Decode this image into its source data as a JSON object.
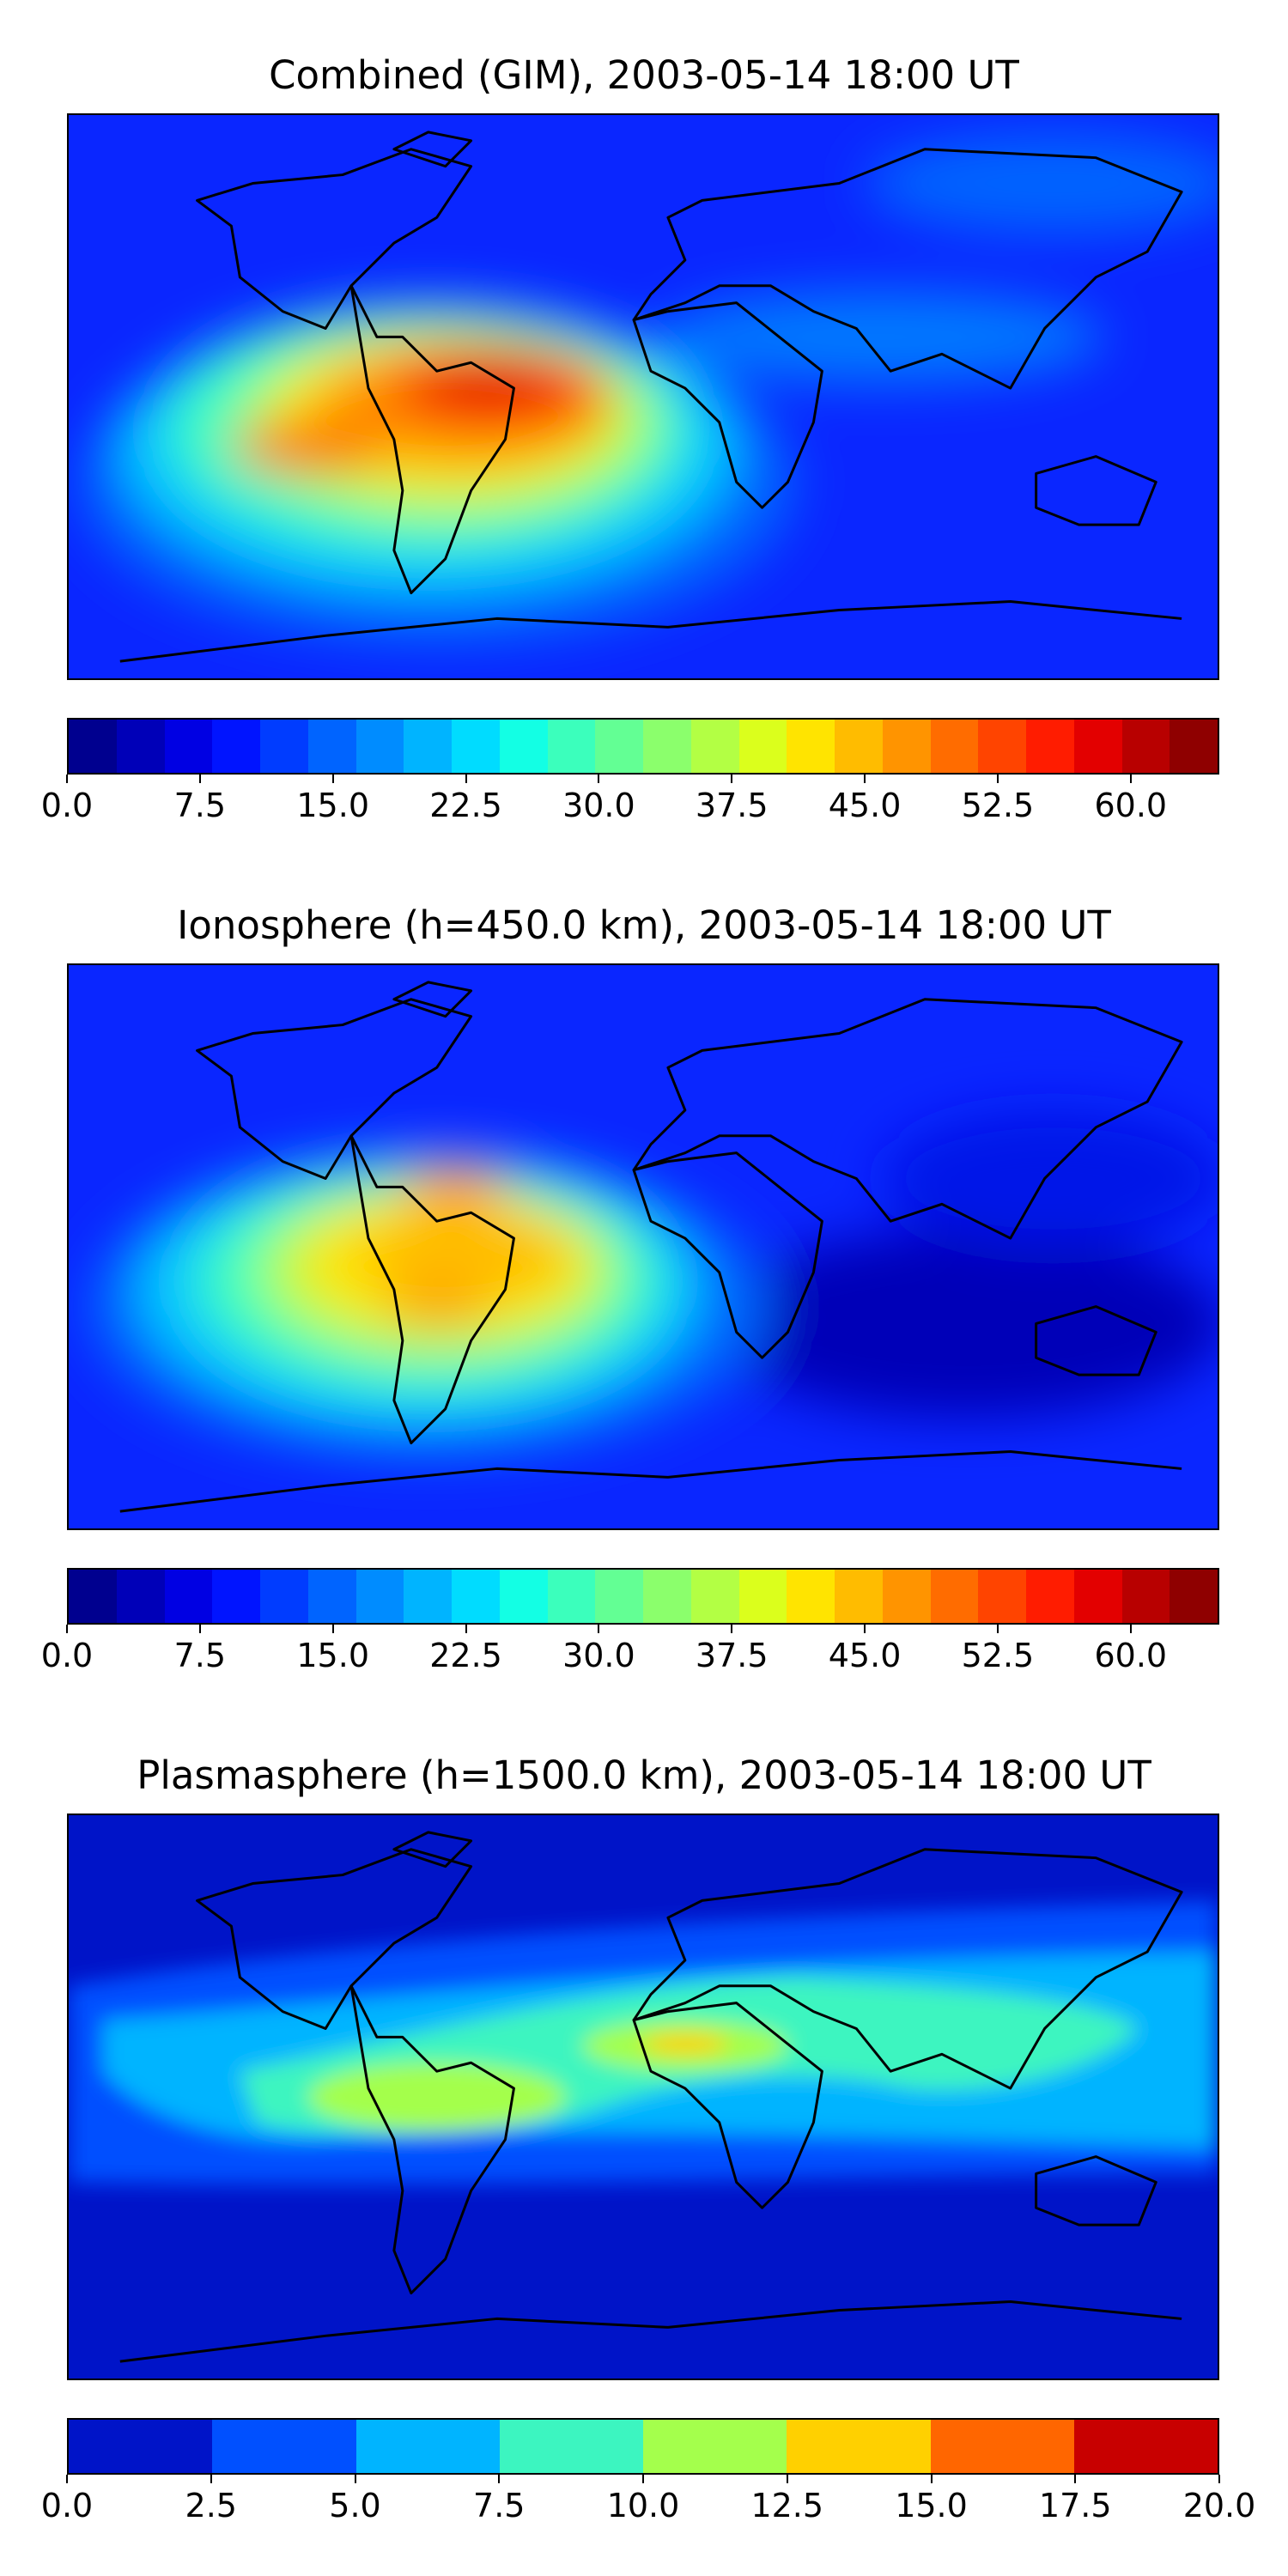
{
  "panels": [
    {
      "title": "Combined (GIM), 2003-05-14 18:00 UT",
      "colorbar": {
        "ticks": [
          "0.0",
          "7.5",
          "15.0",
          "22.5",
          "30.0",
          "37.5",
          "45.0",
          "52.5",
          "60.0"
        ],
        "tick_values": [
          0,
          7.5,
          15,
          22.5,
          30,
          37.5,
          45,
          52.5,
          60
        ],
        "range": [
          0,
          65
        ],
        "colors": [
          "#00008f",
          "#0000b8",
          "#0000e3",
          "#0014ff",
          "#003cff",
          "#0064ff",
          "#008cff",
          "#00b4ff",
          "#00dcff",
          "#13ffe4",
          "#3bffbc",
          "#63ff94",
          "#8bff6c",
          "#b3ff44",
          "#dbff1c",
          "#ffe400",
          "#ffbc00",
          "#ff9400",
          "#ff6c00",
          "#ff4400",
          "#ff1c00",
          "#e30000",
          "#b80000",
          "#8f0000"
        ]
      }
    },
    {
      "title": "Ionosphere  (h=450.0 km), 2003-05-14 18:00 UT",
      "colorbar": {
        "ticks": [
          "0.0",
          "7.5",
          "15.0",
          "22.5",
          "30.0",
          "37.5",
          "45.0",
          "52.5",
          "60.0"
        ],
        "tick_values": [
          0,
          7.5,
          15,
          22.5,
          30,
          37.5,
          45,
          52.5,
          60
        ],
        "range": [
          0,
          65
        ],
        "colors": [
          "#00008f",
          "#0000b8",
          "#0000e3",
          "#0014ff",
          "#003cff",
          "#0064ff",
          "#008cff",
          "#00b4ff",
          "#00dcff",
          "#13ffe4",
          "#3bffbc",
          "#63ff94",
          "#8bff6c",
          "#b3ff44",
          "#dbff1c",
          "#ffe400",
          "#ffbc00",
          "#ff9400",
          "#ff6c00",
          "#ff4400",
          "#ff1c00",
          "#e30000",
          "#b80000",
          "#8f0000"
        ]
      }
    },
    {
      "title": "Plasmasphere (h=1500.0 km), 2003-05-14 18:00 UT",
      "colorbar": {
        "ticks": [
          "0.0",
          "2.5",
          "5.0",
          "7.5",
          "10.0",
          "12.5",
          "15.0",
          "17.5",
          "20.0"
        ],
        "tick_values": [
          0,
          2.5,
          5,
          7.5,
          10,
          12.5,
          15,
          17.5,
          20
        ],
        "range": [
          0,
          20
        ],
        "colors": [
          "#0014c8",
          "#0050ff",
          "#00b4ff",
          "#3cf5c0",
          "#a4ff4c",
          "#ffd000",
          "#ff6600",
          "#c80000"
        ]
      }
    }
  ],
  "colors": {
    "background": "#ffffff",
    "coastline": "#000000"
  }
}
